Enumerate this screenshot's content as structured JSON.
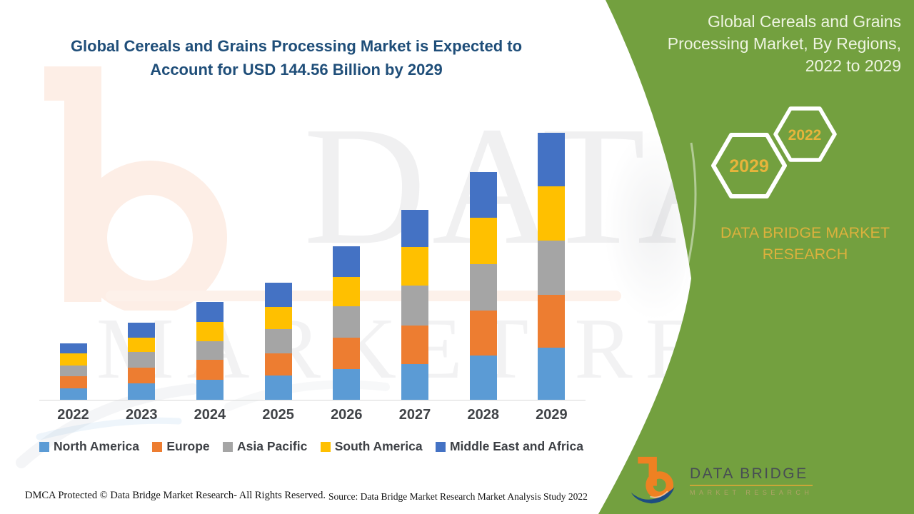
{
  "title": {
    "line1": "Global Cereals and Grains Processing Market is Expected to",
    "line2": "Account for USD 144.56 Billion by 2029"
  },
  "watermark": {
    "line1": "DATA BRIDGE",
    "line2": "MARKET RESEARCH"
  },
  "side_panel": {
    "title_lines": [
      "Global Cereals and Grains",
      "Processing Market, By Regions,",
      "2022 to 2029"
    ],
    "hexagon_large_label": "2029",
    "hexagon_small_label": "2022",
    "brand_lines": [
      "DATA BRIDGE MARKET",
      "RESEARCH"
    ],
    "logo_name": "DATA BRIDGE",
    "logo_subtitle": "MARKET RESEARCH",
    "colors": {
      "panel_green": "#73a03f",
      "gold": "#e7b43b",
      "title_text": "#eef4e1"
    }
  },
  "footer": {
    "left": "DMCA Protected © Data Bridge Market Research- All Rights Reserved.",
    "right": "Source: Data Bridge Market Research Market Analysis Study 2022"
  },
  "chart_data": {
    "type": "bar",
    "stacked": true,
    "unit": "USD Billion",
    "categories": [
      "2022",
      "2023",
      "2024",
      "2025",
      "2026",
      "2027",
      "2028",
      "2029"
    ],
    "series": [
      {
        "name": "North America",
        "color": "#5B9BD5",
        "values": [
          6.3,
          9.0,
          10.8,
          13.1,
          16.5,
          19.4,
          24.0,
          28.3
        ]
      },
      {
        "name": "Europe",
        "color": "#ED7D31",
        "values": [
          6.5,
          8.4,
          10.7,
          11.9,
          17.0,
          20.9,
          24.5,
          28.6
        ]
      },
      {
        "name": "Asia Pacific",
        "color": "#A5A5A5",
        "values": [
          5.9,
          8.4,
          10.3,
          13.2,
          17.2,
          21.5,
          25.1,
          29.4
        ]
      },
      {
        "name": "South America",
        "color": "#FFC000",
        "values": [
          6.5,
          8.0,
          10.3,
          12.2,
          15.9,
          20.9,
          25.1,
          29.3
        ]
      },
      {
        "name": "Middle East and Africa",
        "color": "#4472C4",
        "values": [
          5.3,
          8.0,
          10.9,
          12.9,
          16.5,
          20.1,
          24.6,
          28.96
        ]
      }
    ],
    "totals": [
      30.5,
      41.8,
      53.0,
      63.3,
      83.1,
      102.8,
      123.3,
      144.56
    ],
    "ylim": [
      0,
      150
    ],
    "grid": false,
    "value_axis_shown": false,
    "legend_position": "bottom",
    "highlight_value": "USD 144.56 Billion by 2029"
  }
}
